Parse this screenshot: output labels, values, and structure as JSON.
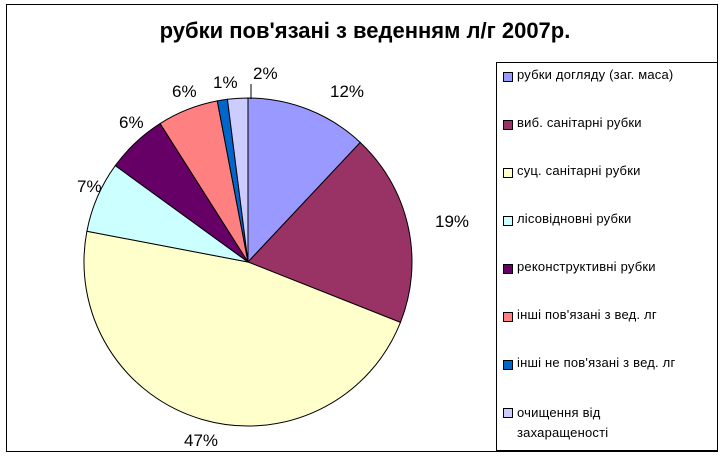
{
  "chart_data": {
    "type": "pie",
    "title": "рубки пов'язані з веденням л/г 2007р.",
    "legend_position": "right",
    "series": [
      {
        "label": "рубки догляду (заг. маса)",
        "value": 12,
        "display": "12%",
        "color": "#9999FF"
      },
      {
        "label": "виб. санітарні рубки",
        "value": 19,
        "display": "19%",
        "color": "#993366"
      },
      {
        "label": "суц. санітарні рубки",
        "value": 47,
        "display": "47%",
        "color": "#FFFFCC"
      },
      {
        "label": "лісовідновні рубки",
        "value": 7,
        "display": "7%",
        "color": "#CCFFFF"
      },
      {
        "label": "реконструктивні рубки",
        "value": 6,
        "display": "6%",
        "color": "#660066"
      },
      {
        "label": "інші пов'язані з вед. лг",
        "value": 6,
        "display": "6%",
        "color": "#FF8080"
      },
      {
        "label": "інші не пов'язані з вед. лг",
        "value": 1,
        "display": "1%",
        "color": "#0066CC"
      },
      {
        "label": "очищення від захаращеності",
        "value": 2,
        "display": "2%",
        "color": "#CCCCFF"
      }
    ]
  }
}
